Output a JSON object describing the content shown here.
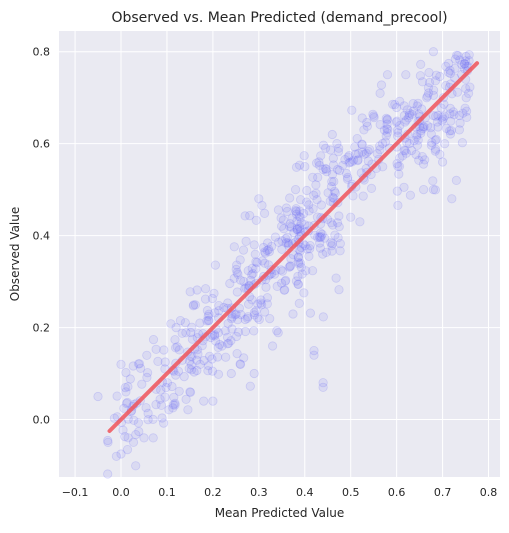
{
  "chart_data": {
    "type": "scatter",
    "title": "Observed vs. Mean Predicted (demand_precool)",
    "xlabel": "Mean Predicted Value",
    "ylabel": "Observed Value",
    "xlim": [
      -0.135,
      0.825
    ],
    "ylim": [
      -0.125,
      0.845
    ],
    "xticks": [
      -0.1,
      0.0,
      0.1,
      0.2,
      0.3,
      0.4,
      0.5,
      0.6,
      0.7,
      0.8
    ],
    "xtick_labels": [
      "−0.1",
      "0.0",
      "0.1",
      "0.2",
      "0.3",
      "0.4",
      "0.5",
      "0.6",
      "0.7",
      "0.8"
    ],
    "yticks": [
      0.0,
      0.2,
      0.4,
      0.6,
      0.8
    ],
    "ytick_labels": [
      "0.0",
      "0.2",
      "0.4",
      "0.6",
      "0.8"
    ],
    "grid": true,
    "background": "#eaeaf2",
    "point_color": "#6f6ff5",
    "line_color": "#f0535b",
    "reference_line": {
      "from": [
        -0.025,
        -0.025
      ],
      "to": [
        0.775,
        0.775
      ]
    },
    "clusters": [
      {
        "x_range": [
          -0.03,
          0.15
        ],
        "y_center_offset": 0.0,
        "spread": 0.055,
        "count": 90
      },
      {
        "x_range": [
          0.15,
          0.28
        ],
        "y_center_offset": 0.0,
        "spread": 0.06,
        "count": 110
      },
      {
        "x_range": [
          0.28,
          0.4
        ],
        "y_center_offset": 0.0,
        "spread": 0.06,
        "count": 110
      },
      {
        "x_range": [
          0.38,
          0.48
        ],
        "y_center_offset": 0.0,
        "spread": 0.075,
        "count": 110
      },
      {
        "x_range": [
          0.48,
          0.6
        ],
        "y_center_offset": 0.05,
        "spread": 0.05,
        "count": 70
      },
      {
        "x_range": [
          0.6,
          0.76
        ],
        "y_center_offset": -0.02,
        "spread": 0.055,
        "count": 150
      }
    ],
    "outliers": [
      [
        -0.01,
        -0.08
      ],
      [
        0.0,
        -0.075
      ],
      [
        0.05,
        -0.04
      ],
      [
        0.07,
        -0.04
      ],
      [
        0.42,
        0.15
      ],
      [
        0.42,
        0.14
      ],
      [
        0.44,
        0.08
      ],
      [
        0.44,
        0.07
      ],
      [
        0.18,
        0.04
      ],
      [
        0.2,
        0.04
      ],
      [
        0.15,
        0.06
      ],
      [
        0.68,
        0.5
      ],
      [
        0.73,
        0.52
      ],
      [
        0.72,
        0.48
      ],
      [
        0.7,
        0.56
      ],
      [
        0.12,
        0.2
      ],
      [
        0.22,
        0.16
      ],
      [
        0.3,
        0.48
      ],
      [
        0.36,
        0.46
      ],
      [
        0.38,
        0.5
      ],
      [
        0.4,
        0.55
      ],
      [
        0.62,
        0.75
      ],
      [
        0.68,
        0.8
      ],
      [
        0.75,
        0.78
      ],
      [
        0.58,
        0.75
      ],
      [
        0.55,
        0.66
      ],
      [
        0.46,
        0.62
      ],
      [
        0.47,
        0.6
      ],
      [
        0.5,
        0.44
      ],
      [
        0.52,
        0.43
      ],
      [
        0.26,
        0.12
      ],
      [
        0.24,
        0.1
      ],
      [
        0.29,
        0.1
      ],
      [
        0.33,
        0.16
      ],
      [
        -0.05,
        0.05
      ],
      [
        0.0,
        0.12
      ]
    ]
  }
}
